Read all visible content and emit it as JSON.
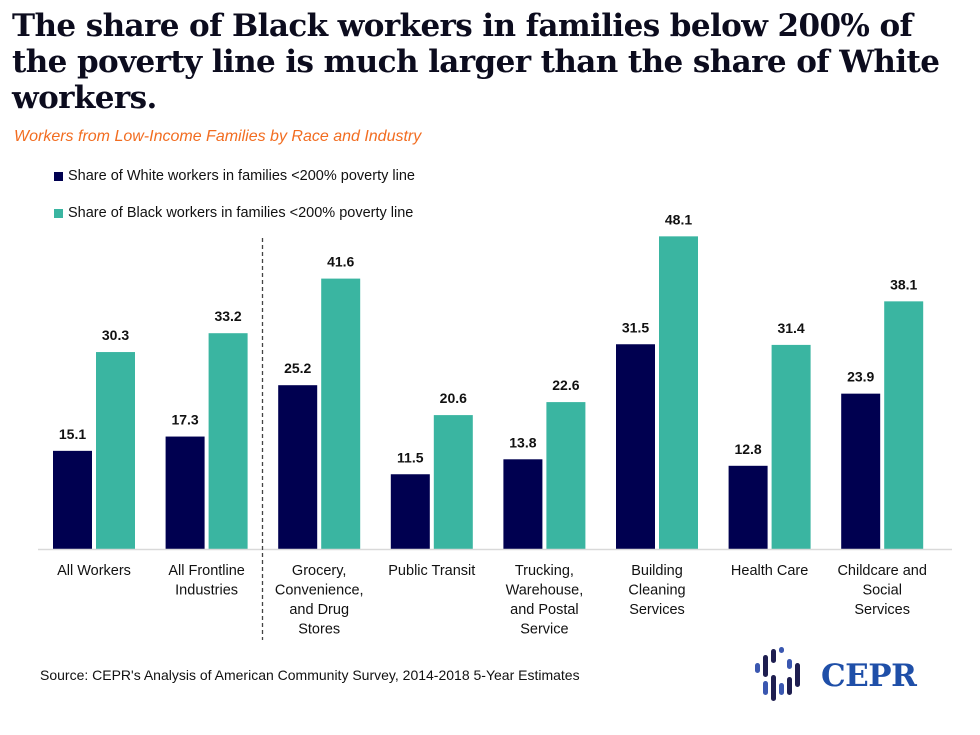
{
  "header": {
    "title": "The share of Black workers in families below 200% of the poverty line is much larger than the share of White workers.",
    "subtitle": "Workers from Low-Income Families by Race and Industry"
  },
  "footer": {
    "source": "Source: CEPR's Analysis of American Community Survey, 2014-2018 5-Year Estimates",
    "logo_text": "CEPR"
  },
  "colors": {
    "white_series": "#000050",
    "black_series": "#3ab5a1",
    "title": "#0c0c1e",
    "subtitle": "#f26d21",
    "logo": "#1f4fa8"
  },
  "chart_data": {
    "type": "bar",
    "title": "Workers from Low-Income Families by Race and Industry",
    "xlabel": "",
    "ylabel": "",
    "ylim": [
      0,
      50
    ],
    "grid": false,
    "legend_position": "top-left",
    "categories": [
      [
        "All Workers"
      ],
      [
        "All Frontline",
        "Industries"
      ],
      [
        "Grocery,",
        "Convenience,",
        "and Drug",
        "Stores"
      ],
      [
        "Public Transit"
      ],
      [
        "Trucking,",
        "Warehouse,",
        "and Postal",
        "Service"
      ],
      [
        "Building",
        "Cleaning",
        "Services"
      ],
      [
        "Health Care"
      ],
      [
        "Childcare and",
        "Social",
        "Services"
      ]
    ],
    "category_names": [
      "All Workers",
      "All Frontline Industries",
      "Grocery, Convenience, and Drug Stores",
      "Public Transit",
      "Trucking, Warehouse, and Postal Service",
      "Building Cleaning Services",
      "Health Care",
      "Childcare and Social Services"
    ],
    "series": [
      {
        "name": "Share of White workers in families <200% poverty line",
        "values": [
          15.1,
          17.3,
          25.2,
          11.5,
          13.8,
          31.5,
          12.8,
          23.9
        ]
      },
      {
        "name": "Share of Black workers in families <200% poverty line",
        "values": [
          30.3,
          33.2,
          41.6,
          20.6,
          22.6,
          48.1,
          31.4,
          38.1
        ]
      }
    ],
    "divider_after_category": 1,
    "data_labels": true
  }
}
